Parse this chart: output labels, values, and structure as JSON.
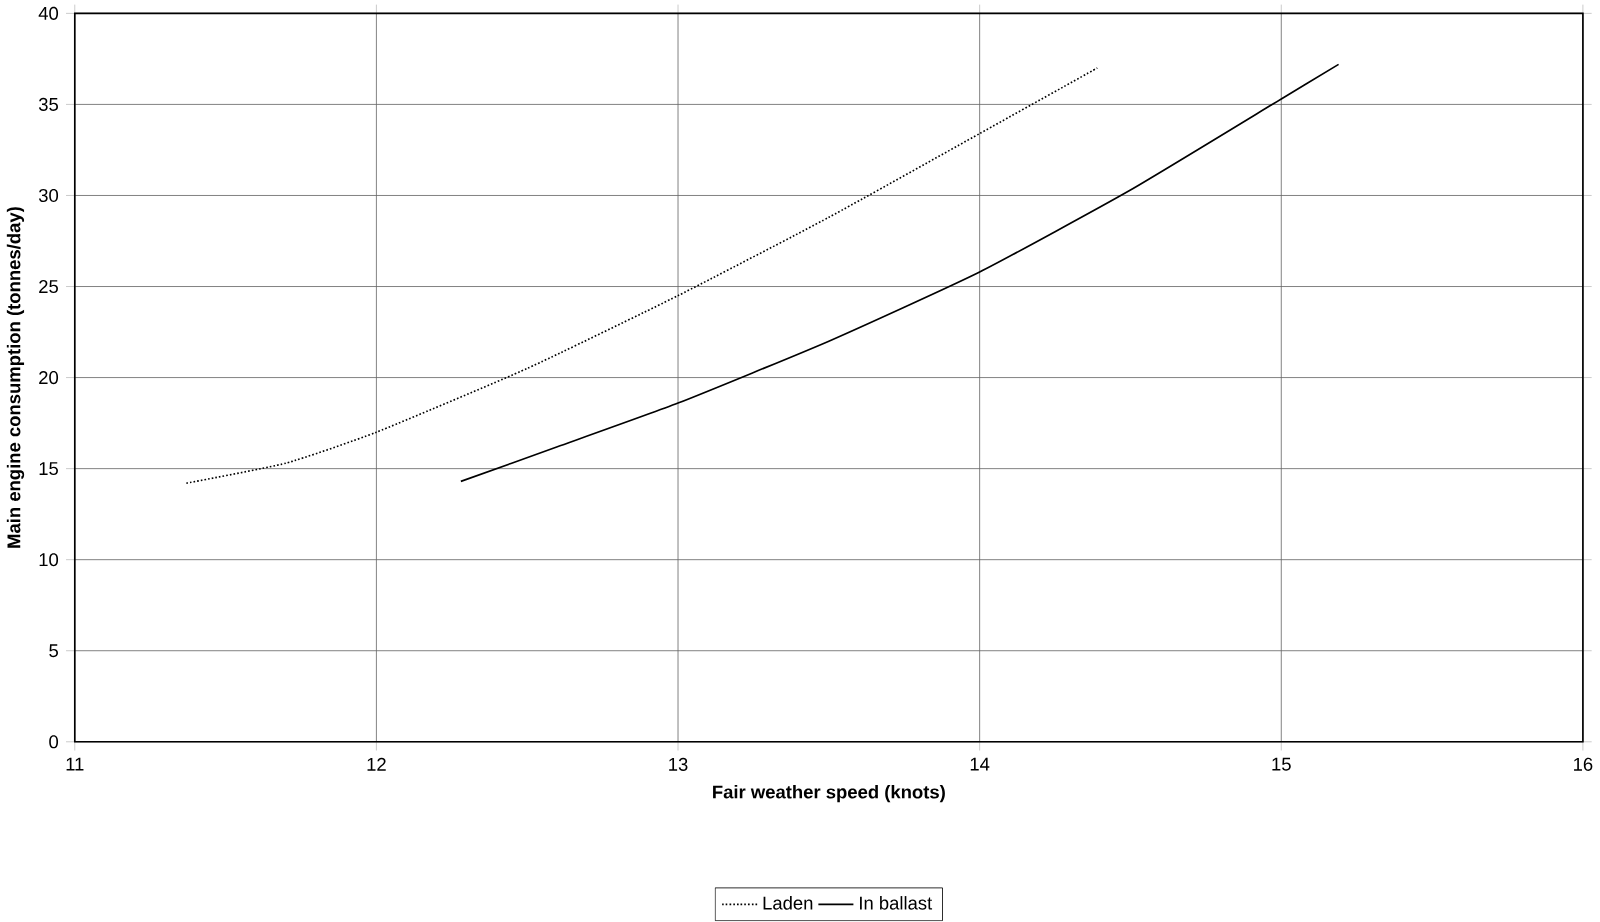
{
  "chart_data": {
    "type": "line",
    "xlabel": "Fair weather speed (knots)",
    "ylabel": "Main engine consumption (tonnes/day)",
    "xlim": [
      11,
      16
    ],
    "ylim": [
      0,
      40
    ],
    "xticks": [
      11,
      12,
      13,
      14,
      15,
      16
    ],
    "yticks": [
      0,
      5,
      10,
      15,
      20,
      25,
      30,
      35,
      40
    ],
    "grid": true,
    "legend": "bottom",
    "series": [
      {
        "name": "Laden",
        "color": "#000000",
        "line_style": "dotted",
        "x": [
          11.37,
          11.7,
          12.0,
          12.5,
          13.0,
          13.5,
          14.0,
          14.39
        ],
        "values": [
          14.2,
          15.3,
          17.0,
          20.5,
          24.5,
          28.8,
          33.4,
          37.0
        ]
      },
      {
        "name": "In ballast",
        "color": "#000000",
        "line_style": "solid",
        "x": [
          12.28,
          12.6,
          13.0,
          13.5,
          14.0,
          14.5,
          15.0,
          15.19
        ],
        "values": [
          14.3,
          16.2,
          18.6,
          22.0,
          25.8,
          30.3,
          35.3,
          37.2
        ]
      }
    ]
  }
}
